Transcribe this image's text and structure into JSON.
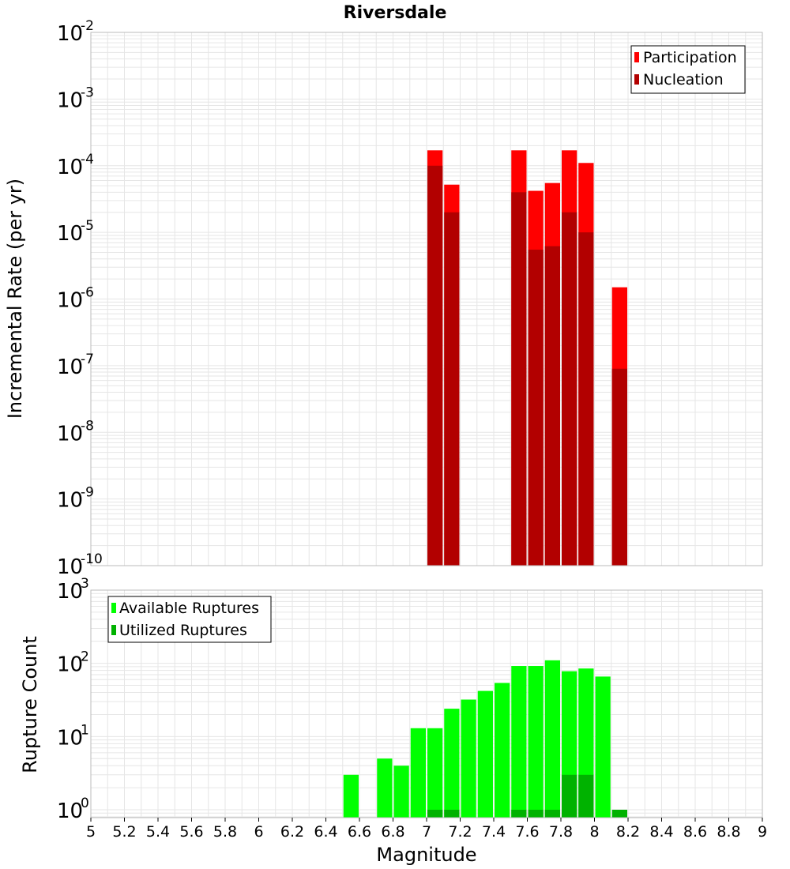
{
  "title": "Riversdale",
  "xlabel": "Magnitude",
  "colors": {
    "participation": "#ff0000",
    "nucleation": "#b20000",
    "available": "#00ff00",
    "utilized": "#00b200",
    "grid": "#e6e6e6",
    "frame": "#bbbbbb"
  },
  "chart_data": [
    {
      "type": "bar",
      "title": "Riversdale",
      "ylabel": "Incremental Rate (per yr)",
      "yscale": "log",
      "ylim": [
        1e-10,
        0.01
      ],
      "xlim": [
        5,
        9
      ],
      "ytick_exponents": [
        "-2",
        "-3",
        "-4",
        "-5",
        "-6",
        "-7",
        "-8",
        "-9",
        "-10"
      ],
      "legend_position": "top-right",
      "series": [
        {
          "name": "Participation",
          "x": [
            7.05,
            7.15,
            7.55,
            7.65,
            7.75,
            7.85,
            7.95,
            8.15
          ],
          "values": [
            0.00017,
            5.2e-05,
            0.00017,
            4.2e-05,
            5.5e-05,
            0.00017,
            0.00011,
            1.5e-06
          ]
        },
        {
          "name": "Nucleation",
          "x": [
            7.05,
            7.15,
            7.55,
            7.65,
            7.75,
            7.85,
            7.95,
            8.15
          ],
          "values": [
            0.0001,
            2e-05,
            4e-05,
            5.5e-06,
            6.2e-06,
            2e-05,
            1e-05,
            9e-08
          ]
        }
      ]
    },
    {
      "type": "bar",
      "ylabel": "Rupture Count",
      "yscale": "log",
      "ylim": [
        0.78,
        1000
      ],
      "xlim": [
        5,
        9
      ],
      "ytick_exponents": [
        "3",
        "2",
        "1",
        "0"
      ],
      "legend_position": "top-left",
      "xlabel": "Magnitude",
      "xticks": [
        "5",
        "5.2",
        "5.4",
        "5.6",
        "5.8",
        "6",
        "6.2",
        "6.4",
        "6.6",
        "6.8",
        "7",
        "7.2",
        "7.4",
        "7.6",
        "7.8",
        "8",
        "8.2",
        "8.4",
        "8.6",
        "8.8",
        "9"
      ],
      "series": [
        {
          "name": "Available Ruptures",
          "x": [
            6.55,
            6.75,
            6.85,
            6.95,
            7.05,
            7.15,
            7.25,
            7.35,
            7.45,
            7.55,
            7.65,
            7.75,
            7.85,
            7.95,
            8.05
          ],
          "values": [
            3,
            5,
            4,
            13,
            13,
            24,
            32,
            42,
            54,
            92,
            92,
            110,
            78,
            85,
            66
          ]
        },
        {
          "name": "Utilized Ruptures",
          "x": [
            7.05,
            7.15,
            7.55,
            7.65,
            7.75,
            7.85,
            7.95,
            8.15
          ],
          "values": [
            1,
            1,
            1,
            1,
            1,
            3,
            3,
            1
          ]
        }
      ]
    }
  ]
}
